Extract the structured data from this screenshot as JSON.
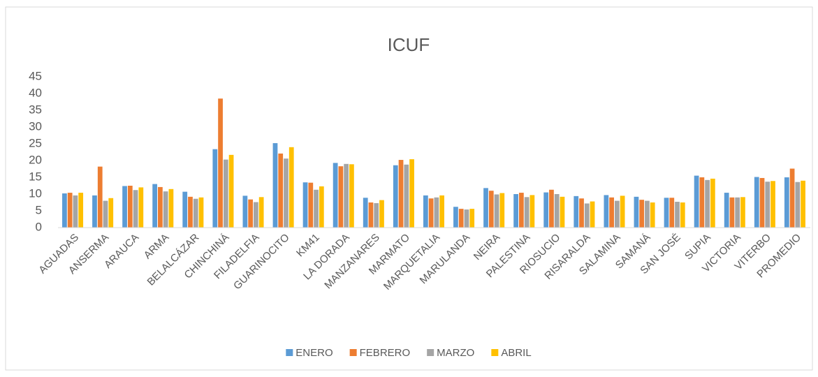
{
  "chart_data": {
    "type": "bar",
    "title": "ICUF",
    "categories": [
      "AGUADAS",
      "ANSERMA",
      "ARAUCA",
      "ARMA",
      "BELALCÁZAR",
      "CHINCHINÁ",
      "FILADELFIA",
      "GUARINOCITO",
      "KM41",
      "LA DORADA",
      "MANZANARES",
      "MARMATO",
      "MARQUETALIA",
      "MARULANDA",
      "NEIRA",
      "PALESTINA",
      "RIOSUCIO",
      "RISARALDA",
      "SALAMINA",
      "SAMANÁ",
      "SAN JOSÉ",
      "SUPIA",
      "VICTORIA",
      "VITERBO",
      "PROMEDIO"
    ],
    "series": [
      {
        "name": "ENERO",
        "color": "#5b9bd5",
        "values": [
          10.2,
          9.6,
          12.4,
          13.0,
          10.7,
          23.4,
          9.5,
          25.2,
          13.5,
          19.3,
          8.9,
          18.6,
          9.6,
          6.2,
          11.8,
          10.0,
          10.5,
          9.4,
          9.7,
          9.2,
          8.9,
          15.5,
          10.4,
          15.1,
          15.0
        ]
      },
      {
        "name": "FEBRERO",
        "color": "#ed7d31",
        "values": [
          10.4,
          18.2,
          12.5,
          12.1,
          9.2,
          38.5,
          8.4,
          22.1,
          13.4,
          18.3,
          7.5,
          20.2,
          8.7,
          5.6,
          11.0,
          10.4,
          11.3,
          8.7,
          9.0,
          8.3,
          8.9,
          15.0,
          9.0,
          14.8,
          17.6
        ]
      },
      {
        "name": "MARZO",
        "color": "#a5a5a5",
        "values": [
          9.6,
          8.0,
          11.2,
          10.8,
          8.6,
          20.3,
          7.6,
          20.6,
          11.3,
          19.0,
          7.3,
          18.8,
          9.0,
          5.4,
          9.9,
          9.1,
          10.0,
          7.2,
          8.0,
          8.0,
          7.7,
          14.2,
          9.0,
          13.7,
          13.6
        ]
      },
      {
        "name": "ABRIL",
        "color": "#ffc000",
        "values": [
          10.4,
          8.8,
          12.0,
          11.5,
          9.0,
          21.7,
          9.1,
          24.0,
          12.3,
          18.9,
          8.2,
          20.4,
          9.6,
          5.6,
          10.3,
          9.7,
          9.2,
          7.8,
          9.5,
          7.5,
          7.5,
          14.6,
          9.1,
          13.9,
          14.0
        ]
      }
    ],
    "ylim": [
      0,
      45
    ],
    "yticks": [
      0,
      5,
      10,
      15,
      20,
      25,
      30,
      35,
      40,
      45
    ],
    "grid": false,
    "legend": "bottom"
  }
}
